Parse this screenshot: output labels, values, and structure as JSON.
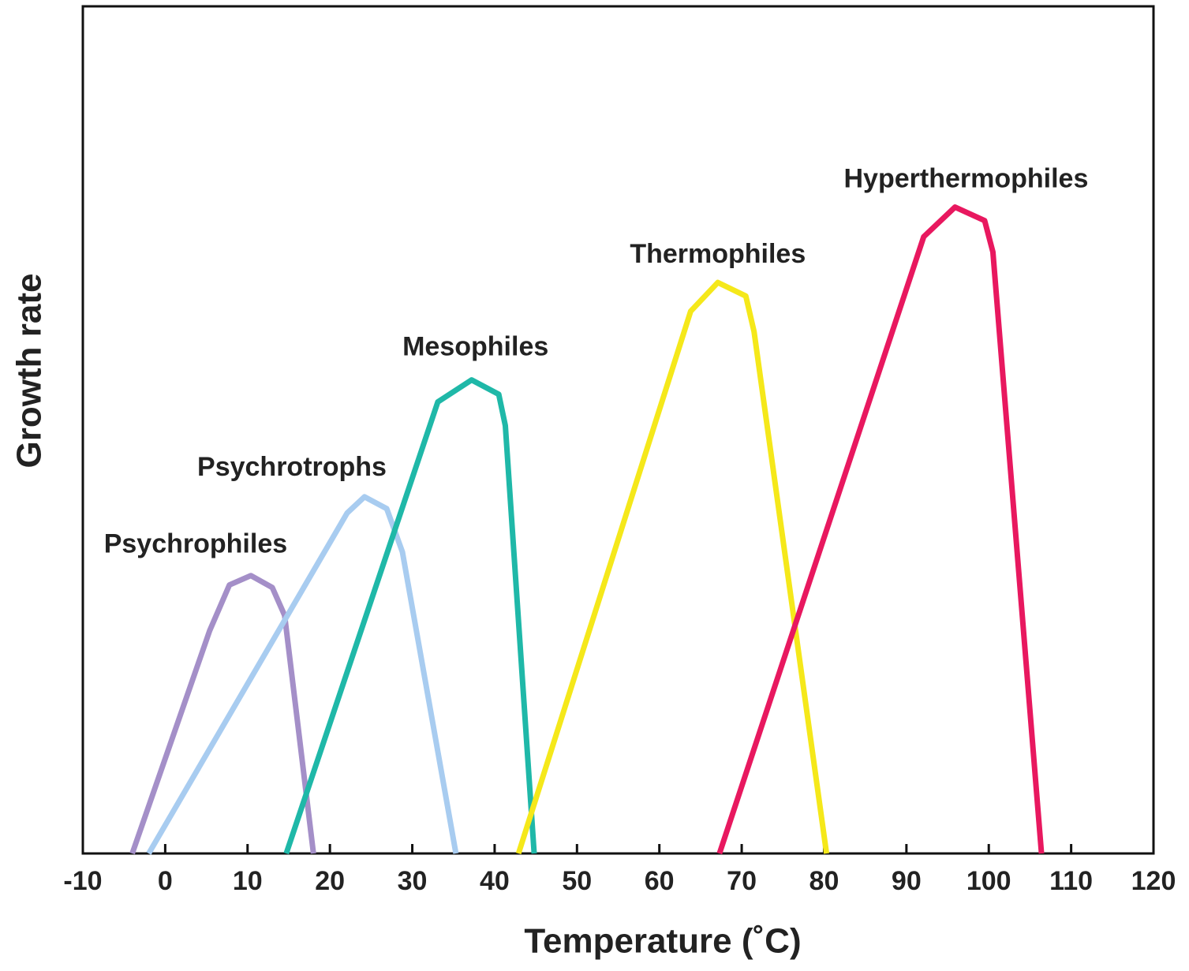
{
  "chart_data": {
    "type": "line",
    "x_label": "Temperature (˚C)",
    "y_label": "Growth rate",
    "xlim": [
      -10,
      120
    ],
    "xticks": [
      -10,
      0,
      10,
      20,
      30,
      40,
      50,
      60,
      70,
      80,
      90,
      100,
      110,
      120
    ],
    "ylim": [
      0,
      100
    ],
    "series": [
      {
        "name": "Psychrophiles",
        "color": "#a48fc8",
        "x": [
          -4,
          5.4,
          7.8,
          10.4,
          13,
          14.5,
          18
        ],
        "values": [
          0,
          26.3,
          31.7,
          32.8,
          31.4,
          28.1,
          0
        ]
      },
      {
        "name": "Psychrotrophs",
        "color": "#a8ccf0",
        "x": [
          -2,
          22.1,
          24.2,
          26.9,
          28.8,
          35.3
        ],
        "values": [
          0,
          40.2,
          42.1,
          40.7,
          35.6,
          0
        ]
      },
      {
        "name": "Mesophiles",
        "color": "#1fb8a8",
        "x": [
          14.7,
          33.1,
          37.2,
          40.5,
          41.3,
          44.8
        ],
        "values": [
          0,
          53.3,
          55.9,
          54.2,
          50.5,
          0
        ]
      },
      {
        "name": "Thermophiles",
        "color": "#f5e81a",
        "x": [
          42.9,
          63.8,
          67.1,
          70.5,
          71.5,
          80.3
        ],
        "values": [
          0,
          64,
          67.4,
          65.8,
          61.6,
          0
        ]
      },
      {
        "name": "Hyperthermophiles",
        "color": "#e8185f",
        "x": [
          67.3,
          92.1,
          95.9,
          99.5,
          100.5,
          106.4
        ],
        "values": [
          0,
          72.8,
          76.3,
          74.7,
          71,
          0
        ]
      }
    ]
  }
}
